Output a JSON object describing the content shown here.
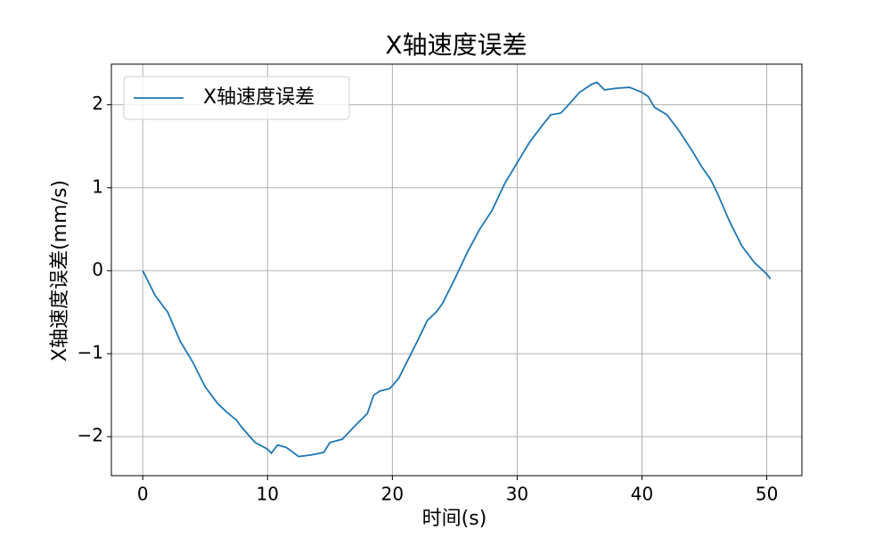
{
  "chart_data": {
    "type": "line",
    "title": "X轴速度误差",
    "xlabel": "时间(s)",
    "ylabel": "X轴速度误差(mm/s)",
    "x": [
      0,
      1,
      2,
      3,
      4,
      5,
      6,
      6.7,
      7.5,
      8,
      9,
      10,
      10.3,
      10.8,
      11.5,
      12.5,
      13.5,
      14.5,
      15,
      16,
      16.5,
      17,
      18,
      18.5,
      19,
      19.8,
      20.5,
      21,
      22,
      22.8,
      23.5,
      24,
      25,
      26,
      27,
      28,
      29,
      30,
      31,
      32,
      32.7,
      33.5,
      34,
      35,
      36,
      36.4,
      37,
      38,
      39,
      40,
      40.5,
      41,
      42,
      43,
      44,
      44.8,
      45.5,
      46,
      47,
      48,
      49,
      50,
      50.3
    ],
    "series": [
      {
        "name": "X轴速度误差",
        "color": "#1f77b4",
        "values": [
          0,
          -0.3,
          -0.5,
          -0.85,
          -1.1,
          -1.4,
          -1.6,
          -1.7,
          -1.8,
          -1.9,
          -2.07,
          -2.15,
          -2.2,
          -2.1,
          -2.13,
          -2.24,
          -2.22,
          -2.19,
          -2.07,
          -2.03,
          -1.95,
          -1.87,
          -1.72,
          -1.5,
          -1.45,
          -1.42,
          -1.3,
          -1.15,
          -0.85,
          -0.6,
          -0.5,
          -0.4,
          -0.1,
          0.22,
          0.5,
          0.73,
          1.05,
          1.3,
          1.55,
          1.75,
          1.88,
          1.9,
          1.98,
          2.15,
          2.25,
          2.27,
          2.18,
          2.2,
          2.21,
          2.15,
          2.1,
          1.97,
          1.88,
          1.68,
          1.45,
          1.25,
          1.1,
          0.95,
          0.6,
          0.3,
          0.1,
          -0.04,
          -0.1
        ]
      }
    ],
    "xlim": [
      -2.515,
      52.815
    ],
    "xticks": [
      0,
      10,
      20,
      30,
      40,
      50
    ],
    "ylim": [
      -2.47,
      2.49
    ],
    "yticks": [
      {
        "value": -2,
        "label": "−2"
      },
      {
        "value": -1,
        "label": "−1"
      },
      0,
      1,
      2
    ],
    "grid": true,
    "legend": "upper left"
  }
}
